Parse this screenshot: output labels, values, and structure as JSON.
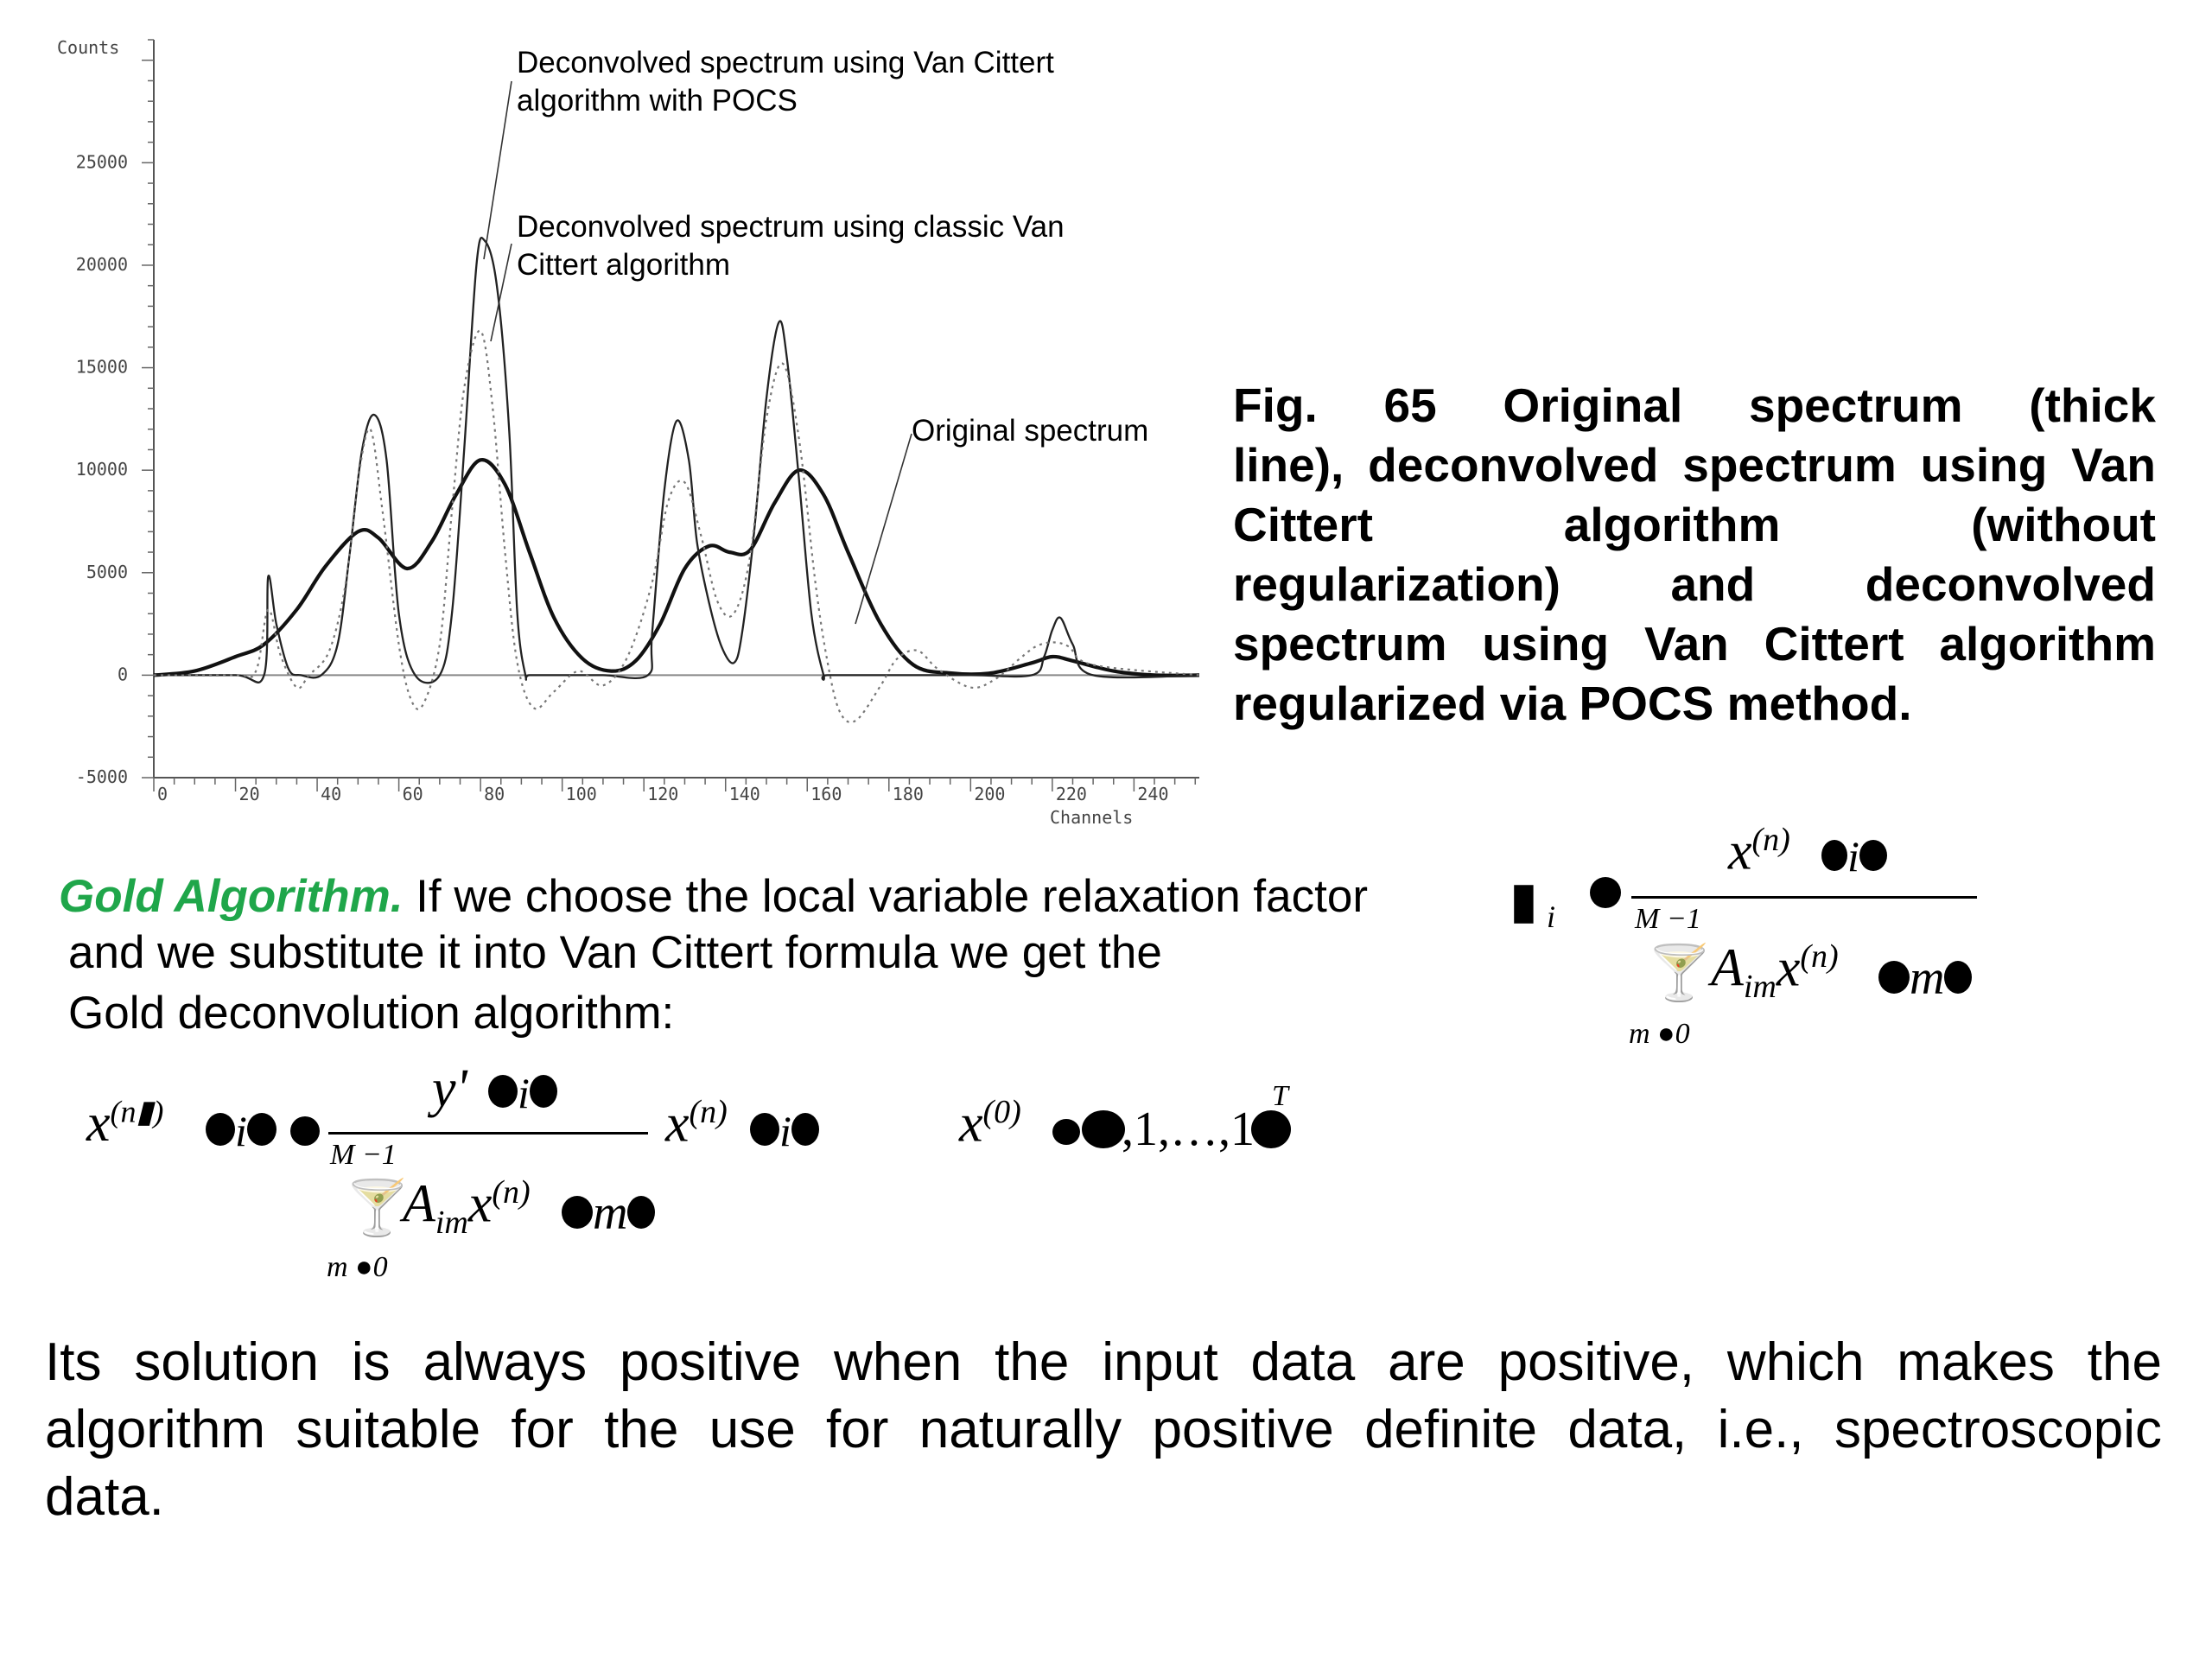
{
  "chart_data": {
    "type": "line",
    "ylabel": "Counts",
    "xlabel": "Channels",
    "xlim": [
      0,
      256
    ],
    "ylim": [
      -5000,
      31000
    ],
    "yticks": [
      -5000,
      0,
      5000,
      10000,
      15000,
      20000,
      25000
    ],
    "xticks": [
      0,
      20,
      40,
      60,
      80,
      100,
      120,
      140,
      160,
      180,
      200,
      220,
      240
    ],
    "grid": false,
    "series": [
      {
        "style": "thick",
        "x": [
          0,
          10,
          20,
          27,
          35,
          42,
          50,
          55,
          62,
          68,
          74,
          80,
          86,
          92,
          98,
          105,
          112,
          118,
          124,
          130,
          136,
          141,
          146,
          152,
          158,
          164,
          170,
          178,
          186,
          195,
          205,
          215,
          220,
          225,
          235,
          245,
          256
        ],
        "y": [
          0,
          200,
          900,
          1500,
          3200,
          5300,
          7000,
          6700,
          5200,
          6500,
          8800,
          10500,
          9300,
          6000,
          2800,
          800,
          200,
          700,
          2500,
          5200,
          6300,
          6000,
          6100,
          8400,
          10000,
          8800,
          6000,
          2500,
          500,
          100,
          100,
          600,
          900,
          700,
          200,
          0,
          0
        ]
      },
      {
        "style": "solid",
        "x": [
          0,
          20,
          27,
          28,
          30,
          33,
          36,
          41,
          45,
          48,
          51,
          54,
          57,
          60,
          64,
          70,
          73,
          76,
          79,
          81,
          84,
          87,
          89,
          91,
          92,
          100,
          110,
          121,
          122,
          125,
          128,
          131,
          133,
          136,
          139,
          142,
          144,
          147,
          150,
          153,
          155,
          158,
          161,
          164,
          165,
          180,
          200,
          215,
          218,
          220,
          222,
          225,
          230,
          256
        ],
        "y": [
          0,
          0,
          0,
          4800,
          2500,
          300,
          0,
          0,
          1500,
          6000,
          11000,
          12700,
          10500,
          3000,
          0,
          0,
          3000,
          11000,
          20000,
          21200,
          19000,
          12000,
          3000,
          0,
          0,
          0,
          0,
          0,
          2000,
          9000,
          12400,
          10500,
          6500,
          3500,
          1400,
          600,
          2000,
          7000,
          13500,
          17200,
          15500,
          9500,
          3000,
          0,
          0,
          0,
          0,
          0,
          900,
          2200,
          2800,
          1500,
          0,
          0
        ]
      },
      {
        "style": "dotted",
        "x": [
          0,
          20,
          25,
          28,
          31,
          35,
          38,
          43,
          47,
          50,
          53,
          56,
          60,
          63,
          66,
          70,
          73,
          76,
          80,
          83,
          86,
          89,
          93,
          98,
          104,
          110,
          116,
          122,
          126,
          130,
          134,
          138,
          142,
          146,
          150,
          154,
          158,
          162,
          165,
          168,
          172,
          178,
          182,
          187,
          192,
          200,
          206,
          212,
          216,
          220,
          224,
          230,
          256
        ],
        "y": [
          0,
          0,
          200,
          3200,
          1000,
          -600,
          0,
          1200,
          4500,
          9500,
          12000,
          8000,
          1500,
          -1200,
          -1400,
          1500,
          8000,
          14000,
          16800,
          13000,
          6000,
          600,
          -1600,
          -800,
          200,
          -500,
          900,
          4500,
          8500,
          9400,
          6800,
          3600,
          3000,
          5800,
          12500,
          15200,
          11500,
          4500,
          600,
          -1800,
          -2200,
          -500,
          800,
          1200,
          300,
          -600,
          -200,
          800,
          1400,
          1600,
          1400,
          500,
          0
        ]
      }
    ],
    "annotations": [
      {
        "line1": "Deconvolved spectrum using Van Cittert",
        "line2": "algorithm with POCS"
      },
      {
        "line1": "Deconvolved spectrum using classic Van",
        "line2": "Cittert algorithm"
      },
      {
        "line1": "Original spectrum",
        "line2": ""
      }
    ]
  },
  "caption": {
    "lines": [
      "Fig. 65 Original spectrum (thick",
      "line), deconvolved spectrum using Van",
      "Cittert algorithm (without",
      "regularization) and deconvolved",
      "spectrum using Van Cittert algorithm",
      "regularized via POCS method."
    ]
  },
  "gold": {
    "title": "Gold Algorithm.",
    "line1_rest": " If we choose the local variable relaxation factor",
    "line2": "and we substitute it into Van Cittert formula we get the",
    "line3": "Gold deconvolution algorithm:"
  },
  "math": {
    "x": "x",
    "n_sup": "(n)",
    "zero_sup": "(0)",
    "y_prime": "y'",
    "A": "A",
    "im_sub": "im",
    "M1": "M −1",
    "m0": "m ●0",
    "i_sub": "i",
    "ones": ",1,…,1",
    "T": "T",
    "m_letter": "m",
    "i_letter": "i"
  },
  "final": {
    "lines": [
      "Its solution is always positive when the input data are positive, which makes the",
      "algorithm suitable for the use for naturally positive definite data, i.e., spectroscopic",
      "data."
    ]
  }
}
